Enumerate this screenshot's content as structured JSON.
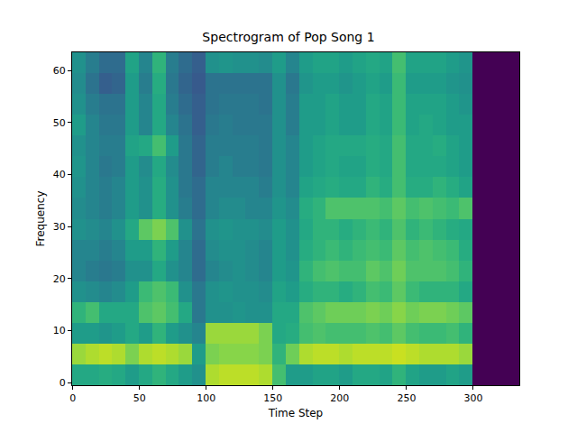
{
  "chart_data": {
    "type": "heatmap",
    "title": "Spectrogram of Pop Song 1",
    "x_label": "Time Step",
    "y_label": "Frequency",
    "xlim": [
      -0.5,
      334.5
    ],
    "ylim": [
      -0.5,
      63.5
    ],
    "xticks": [
      0,
      50,
      100,
      150,
      200,
      250,
      300
    ],
    "yticks": [
      0,
      10,
      20,
      30,
      40,
      50,
      60
    ],
    "zlim": [
      0,
      1
    ],
    "x_edges": [
      -0.5,
      9.5,
      19.5,
      29.5,
      39.5,
      49.5,
      59.5,
      69.5,
      79.5,
      89.5,
      99.5,
      109.5,
      119.5,
      129.5,
      139.5,
      149.5,
      159.5,
      169.5,
      179.5,
      189.5,
      199.5,
      209.5,
      219.5,
      229.5,
      239.5,
      249.5,
      259.5,
      269.5,
      279.5,
      289.5,
      299.5,
      334.5
    ],
    "y_edges": [
      -0.5,
      3.5,
      7.5,
      11.5,
      15.5,
      19.5,
      23.5,
      27.5,
      31.5,
      35.5,
      39.5,
      43.5,
      47.5,
      51.5,
      55.5,
      59.5,
      63.5
    ],
    "z": [
      [
        0.6,
        0.6,
        0.62,
        0.6,
        0.55,
        0.6,
        0.65,
        0.6,
        0.55,
        0.5,
        0.88,
        0.9,
        0.9,
        0.9,
        0.88,
        0.7,
        0.55,
        0.55,
        0.58,
        0.58,
        0.55,
        0.6,
        0.6,
        0.58,
        0.65,
        0.58,
        0.55,
        0.55,
        0.58,
        0.55,
        0
      ],
      [
        0.85,
        0.88,
        0.9,
        0.88,
        0.8,
        0.88,
        0.9,
        0.88,
        0.85,
        0.55,
        0.8,
        0.82,
        0.82,
        0.82,
        0.8,
        0.65,
        0.78,
        0.88,
        0.9,
        0.9,
        0.88,
        0.9,
        0.9,
        0.9,
        0.92,
        0.9,
        0.88,
        0.88,
        0.88,
        0.85,
        0
      ],
      [
        0.55,
        0.55,
        0.52,
        0.55,
        0.6,
        0.55,
        0.65,
        0.55,
        0.5,
        0.45,
        0.85,
        0.85,
        0.85,
        0.85,
        0.8,
        0.6,
        0.62,
        0.7,
        0.72,
        0.7,
        0.7,
        0.7,
        0.72,
        0.7,
        0.75,
        0.7,
        0.68,
        0.68,
        0.7,
        0.65,
        0
      ],
      [
        0.65,
        0.7,
        0.6,
        0.6,
        0.6,
        0.72,
        0.75,
        0.7,
        0.6,
        0.4,
        0.5,
        0.5,
        0.52,
        0.5,
        0.5,
        0.6,
        0.6,
        0.72,
        0.75,
        0.78,
        0.78,
        0.78,
        0.8,
        0.78,
        0.82,
        0.78,
        0.8,
        0.8,
        0.78,
        0.75,
        0
      ],
      [
        0.5,
        0.48,
        0.45,
        0.48,
        0.55,
        0.68,
        0.72,
        0.68,
        0.5,
        0.4,
        0.5,
        0.52,
        0.5,
        0.5,
        0.48,
        0.58,
        0.55,
        0.62,
        0.65,
        0.65,
        0.62,
        0.65,
        0.7,
        0.68,
        0.75,
        0.68,
        0.65,
        0.65,
        0.65,
        0.6,
        0
      ],
      [
        0.45,
        0.42,
        0.4,
        0.42,
        0.5,
        0.5,
        0.6,
        0.5,
        0.45,
        0.35,
        0.45,
        0.48,
        0.5,
        0.48,
        0.45,
        0.55,
        0.52,
        0.65,
        0.7,
        0.72,
        0.7,
        0.7,
        0.75,
        0.72,
        0.78,
        0.72,
        0.72,
        0.72,
        0.7,
        0.65,
        0
      ],
      [
        0.45,
        0.45,
        0.42,
        0.45,
        0.55,
        0.55,
        0.65,
        0.55,
        0.45,
        0.35,
        0.48,
        0.5,
        0.5,
        0.48,
        0.45,
        0.55,
        0.5,
        0.62,
        0.65,
        0.68,
        0.65,
        0.68,
        0.7,
        0.68,
        0.75,
        0.7,
        0.72,
        0.7,
        0.68,
        0.62,
        0
      ],
      [
        0.5,
        0.48,
        0.45,
        0.5,
        0.6,
        0.75,
        0.8,
        0.72,
        0.5,
        0.38,
        0.5,
        0.52,
        0.5,
        0.5,
        0.48,
        0.55,
        0.5,
        0.6,
        0.65,
        0.65,
        0.62,
        0.65,
        0.68,
        0.65,
        0.72,
        0.65,
        0.68,
        0.65,
        0.62,
        0.6,
        0
      ],
      [
        0.48,
        0.45,
        0.42,
        0.45,
        0.55,
        0.5,
        0.62,
        0.5,
        0.42,
        0.35,
        0.45,
        0.48,
        0.48,
        0.45,
        0.45,
        0.52,
        0.48,
        0.62,
        0.65,
        0.72,
        0.72,
        0.72,
        0.72,
        0.7,
        0.75,
        0.7,
        0.72,
        0.7,
        0.68,
        0.72,
        0
      ],
      [
        0.5,
        0.45,
        0.42,
        0.45,
        0.55,
        0.5,
        0.62,
        0.5,
        0.4,
        0.35,
        0.45,
        0.45,
        0.45,
        0.45,
        0.42,
        0.5,
        0.45,
        0.58,
        0.6,
        0.62,
        0.6,
        0.6,
        0.65,
        0.62,
        0.7,
        0.62,
        0.62,
        0.65,
        0.62,
        0.58,
        0
      ],
      [
        0.52,
        0.45,
        0.4,
        0.42,
        0.55,
        0.48,
        0.6,
        0.48,
        0.4,
        0.32,
        0.42,
        0.45,
        0.42,
        0.42,
        0.4,
        0.5,
        0.45,
        0.55,
        0.58,
        0.6,
        0.58,
        0.58,
        0.62,
        0.6,
        0.7,
        0.6,
        0.6,
        0.6,
        0.58,
        0.55,
        0
      ],
      [
        0.5,
        0.45,
        0.42,
        0.42,
        0.58,
        0.6,
        0.7,
        0.55,
        0.4,
        0.32,
        0.42,
        0.42,
        0.42,
        0.42,
        0.4,
        0.5,
        0.45,
        0.55,
        0.58,
        0.6,
        0.6,
        0.6,
        0.62,
        0.6,
        0.7,
        0.6,
        0.6,
        0.62,
        0.58,
        0.55,
        0
      ],
      [
        0.55,
        0.45,
        0.4,
        0.4,
        0.55,
        0.45,
        0.6,
        0.45,
        0.38,
        0.3,
        0.4,
        0.42,
        0.4,
        0.4,
        0.4,
        0.5,
        0.42,
        0.55,
        0.55,
        0.58,
        0.55,
        0.55,
        0.6,
        0.58,
        0.68,
        0.58,
        0.6,
        0.58,
        0.55,
        0.55,
        0
      ],
      [
        0.5,
        0.42,
        0.38,
        0.38,
        0.55,
        0.45,
        0.6,
        0.42,
        0.35,
        0.3,
        0.38,
        0.4,
        0.4,
        0.4,
        0.38,
        0.5,
        0.42,
        0.55,
        0.55,
        0.58,
        0.55,
        0.55,
        0.6,
        0.58,
        0.68,
        0.58,
        0.58,
        0.58,
        0.55,
        0.52,
        0
      ],
      [
        0.48,
        0.38,
        0.3,
        0.32,
        0.55,
        0.42,
        0.62,
        0.4,
        0.32,
        0.28,
        0.38,
        0.38,
        0.38,
        0.38,
        0.38,
        0.5,
        0.4,
        0.52,
        0.55,
        0.55,
        0.52,
        0.55,
        0.58,
        0.55,
        0.68,
        0.55,
        0.55,
        0.55,
        0.52,
        0.5,
        0
      ],
      [
        0.5,
        0.42,
        0.35,
        0.35,
        0.58,
        0.45,
        0.65,
        0.42,
        0.35,
        0.3,
        0.5,
        0.52,
        0.5,
        0.5,
        0.48,
        0.55,
        0.45,
        0.55,
        0.58,
        0.58,
        0.55,
        0.58,
        0.6,
        0.58,
        0.7,
        0.58,
        0.58,
        0.58,
        0.55,
        0.52,
        0
      ]
    ]
  }
}
